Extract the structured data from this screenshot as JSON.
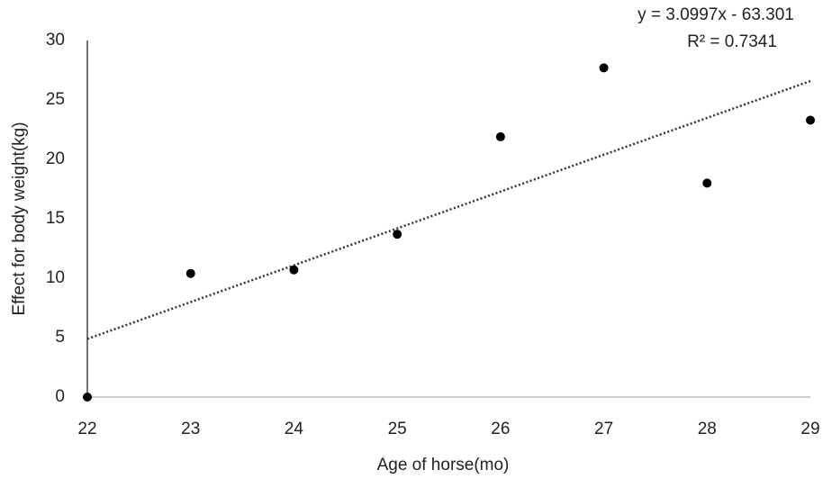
{
  "chart_data": {
    "type": "scatter",
    "x_label": "Age of horse(mo)",
    "y_label": "Effect for body weight(kg)",
    "x": [
      22,
      23,
      24,
      25,
      26,
      27,
      28,
      29
    ],
    "values": [
      0,
      10.4,
      10.7,
      13.7,
      21.9,
      27.7,
      18.0,
      23.3
    ],
    "color": "#000000",
    "xlim": [
      22,
      29
    ],
    "xticks": [
      22,
      23,
      24,
      25,
      26,
      27,
      28,
      29
    ],
    "ylim": [
      0,
      30
    ],
    "yticks": [
      0,
      5,
      10,
      15,
      20,
      25,
      30
    ],
    "grid": false,
    "trendline": {
      "slope": 3.0997,
      "intercept": -63.301,
      "label": "y = 3.0997x - 63.301",
      "r2_label": "R² = 0.7341"
    }
  }
}
